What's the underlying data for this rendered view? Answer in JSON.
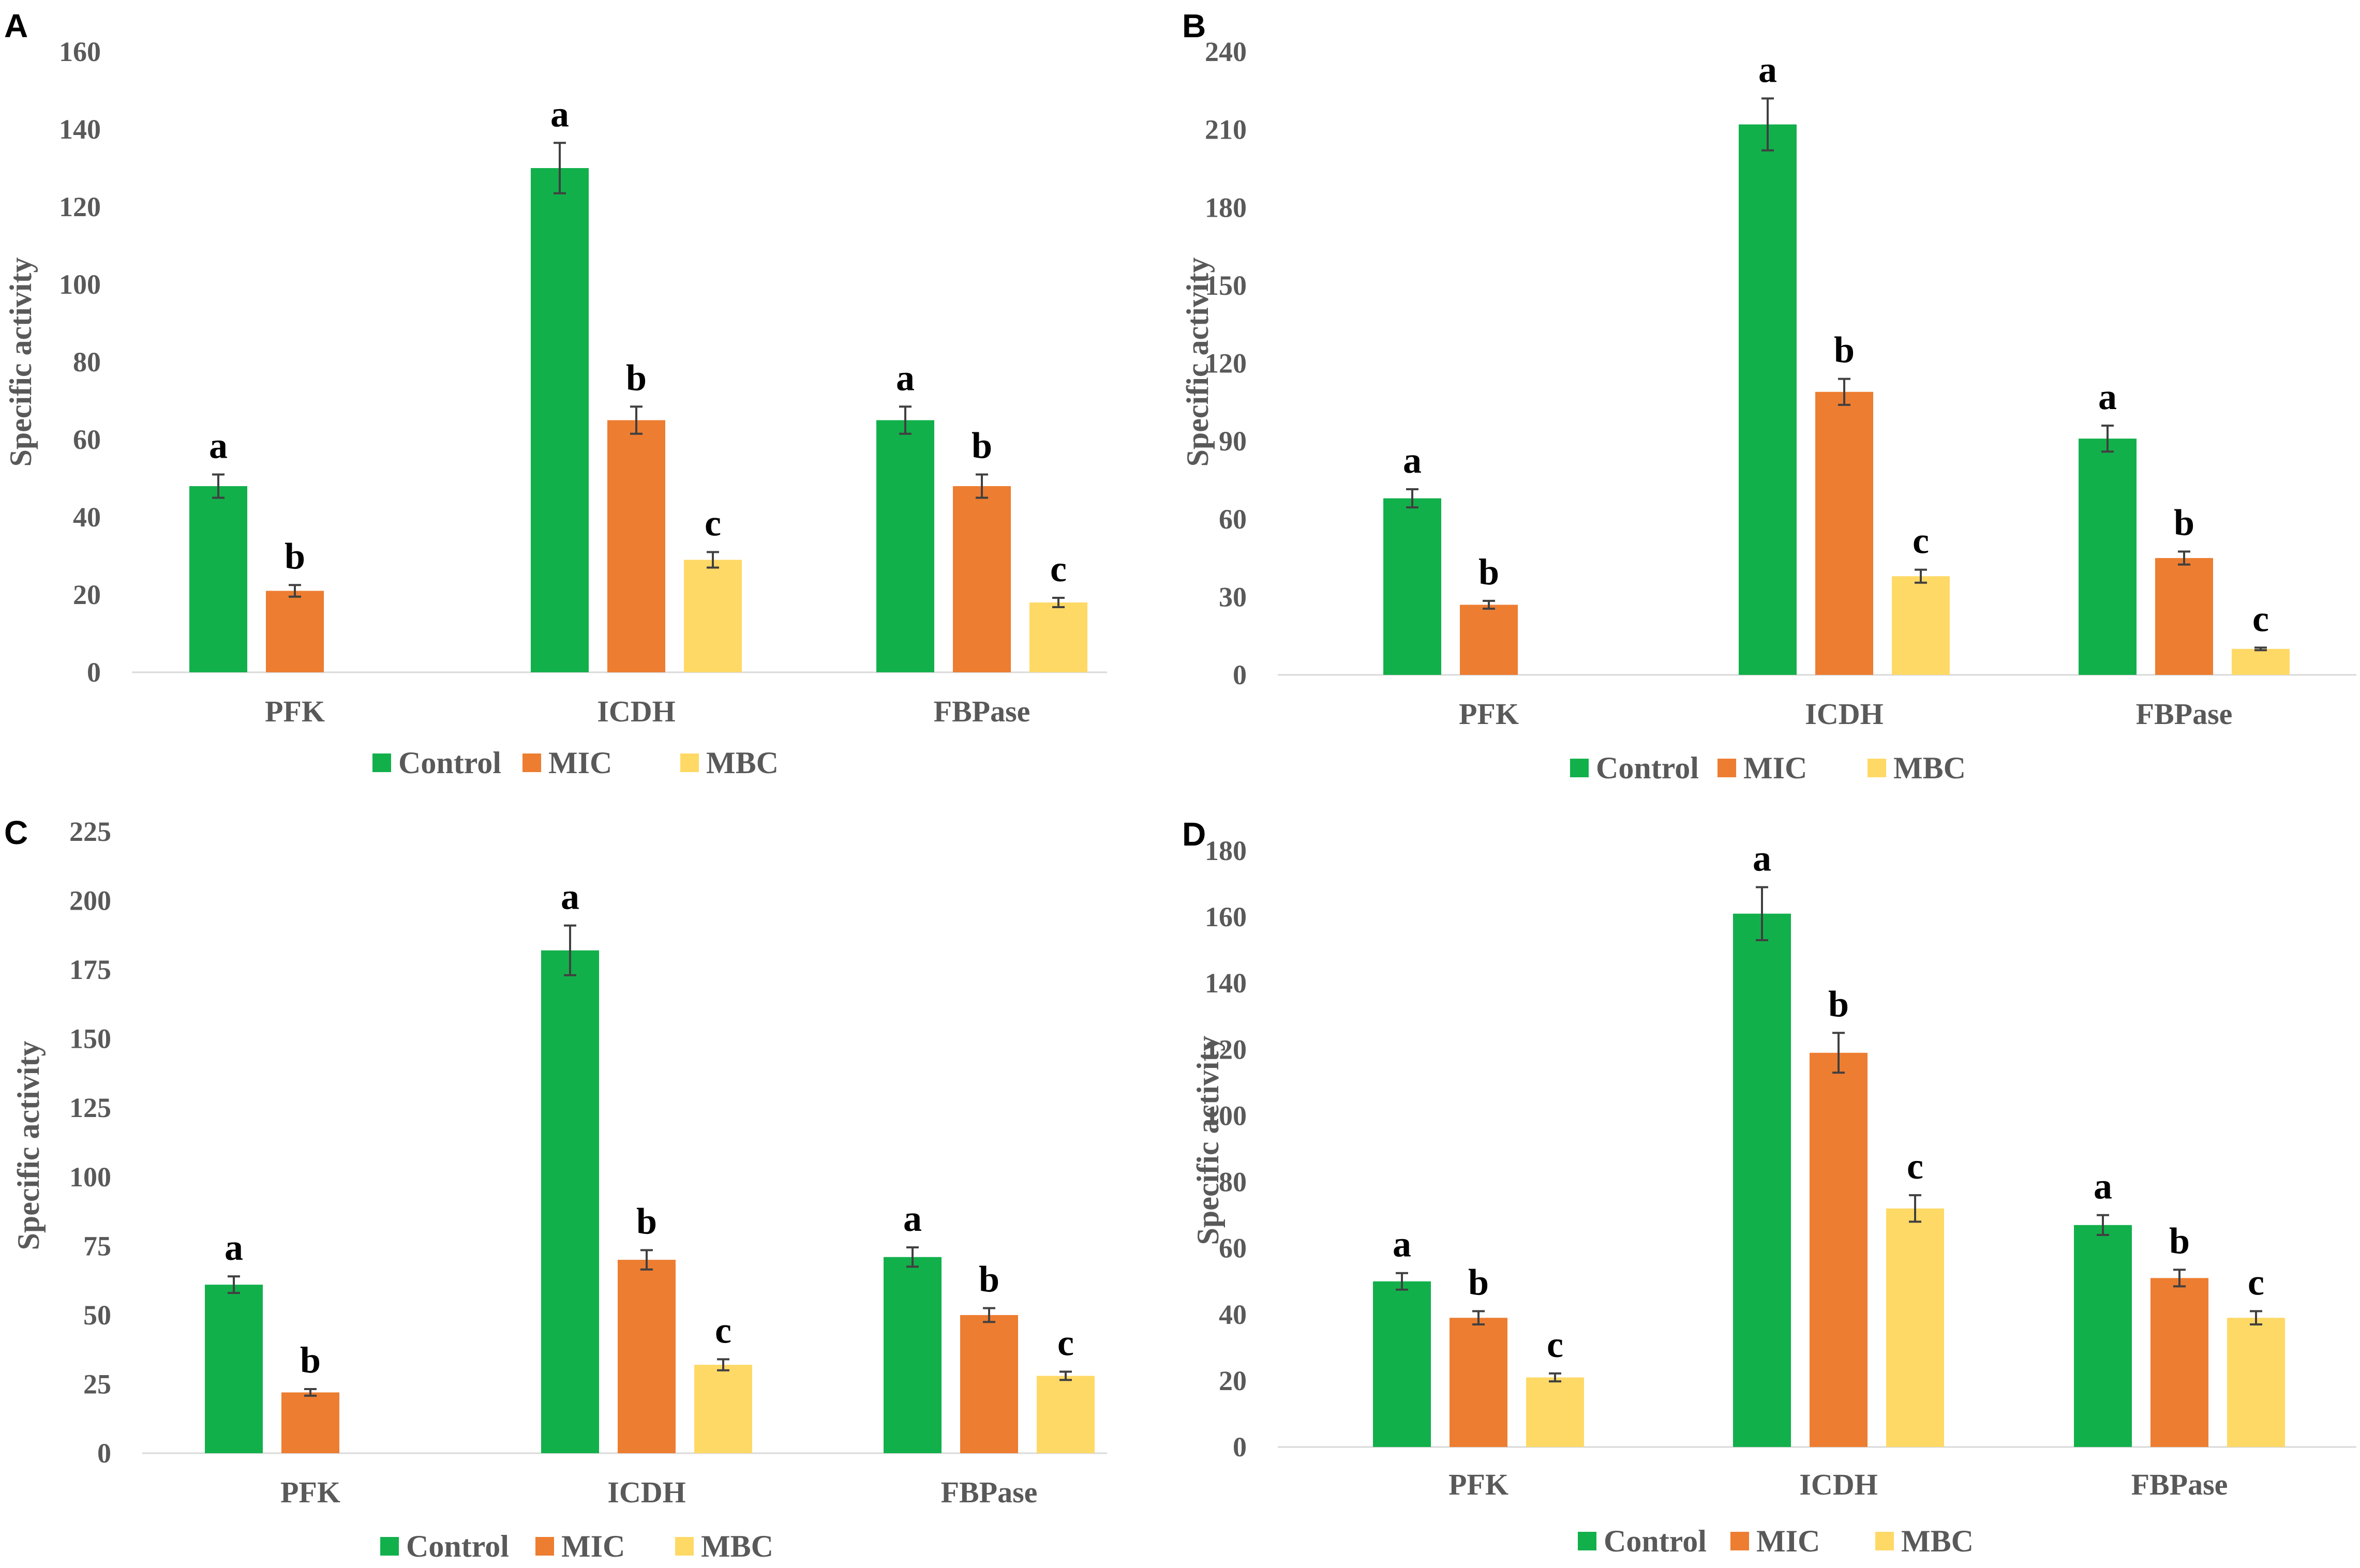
{
  "colors": {
    "Control": "#12b04b",
    "MIC": "#ed7d31",
    "MBC": "#ffd966"
  },
  "chart_data": [
    {
      "type": "bar",
      "panel": "A",
      "ylabel": "Specific activity",
      "categories": [
        "PFK",
        "ICDH",
        "FBPase"
      ],
      "ylim": [
        0,
        160
      ],
      "yticks": [
        0,
        20,
        40,
        60,
        80,
        100,
        120,
        140,
        160
      ],
      "series": [
        {
          "name": "Control",
          "values": [
            48,
            130,
            65
          ],
          "errors": [
            3,
            6.5,
            3.5
          ],
          "sig": [
            "a",
            "a",
            "a"
          ]
        },
        {
          "name": "MIC",
          "values": [
            21,
            65,
            48
          ],
          "errors": [
            1.5,
            3.5,
            3
          ],
          "sig": [
            "b",
            "b",
            "b"
          ]
        },
        {
          "name": "MBC",
          "values": [
            null,
            29,
            18
          ],
          "errors": [
            null,
            2,
            1.2
          ],
          "sig": [
            "",
            "c",
            "c"
          ]
        }
      ]
    },
    {
      "type": "bar",
      "panel": "B",
      "ylabel": "Specific activity",
      "categories": [
        "PFK",
        "ICDH",
        "FBPase"
      ],
      "ylim": [
        0,
        240
      ],
      "yticks": [
        0,
        30,
        60,
        90,
        120,
        150,
        180,
        210,
        240
      ],
      "series": [
        {
          "name": "Control",
          "values": [
            68,
            212,
            91
          ],
          "errors": [
            3.5,
            10,
            5
          ],
          "sig": [
            "a",
            "a",
            "a"
          ]
        },
        {
          "name": "MIC",
          "values": [
            27,
            109,
            45
          ],
          "errors": [
            1.5,
            5,
            2.5
          ],
          "sig": [
            "b",
            "b",
            "b"
          ]
        },
        {
          "name": "MBC",
          "values": [
            null,
            38,
            10
          ],
          "errors": [
            null,
            2.5,
            0.5
          ],
          "sig": [
            "",
            "c",
            "c"
          ]
        }
      ]
    },
    {
      "type": "bar",
      "panel": "C",
      "ylabel": "Specific activity",
      "categories": [
        "PFK",
        "ICDH",
        "FBPase"
      ],
      "ylim": [
        0,
        225
      ],
      "yticks": [
        0,
        25,
        50,
        75,
        100,
        125,
        150,
        175,
        200,
        225
      ],
      "series": [
        {
          "name": "Control",
          "values": [
            61,
            182,
            71
          ],
          "errors": [
            3,
            9,
            3.5
          ],
          "sig": [
            "a",
            "a",
            "a"
          ]
        },
        {
          "name": "MIC",
          "values": [
            22,
            70,
            50
          ],
          "errors": [
            1.2,
            3.5,
            2.5
          ],
          "sig": [
            "b",
            "b",
            "b"
          ]
        },
        {
          "name": "MBC",
          "values": [
            null,
            32,
            28
          ],
          "errors": [
            null,
            2,
            1.5
          ],
          "sig": [
            "",
            "c",
            "c"
          ]
        }
      ]
    },
    {
      "type": "bar",
      "panel": "D",
      "ylabel": "Specific activity",
      "categories": [
        "PFK",
        "ICDH",
        "FBPase"
      ],
      "ylim": [
        0,
        180
      ],
      "yticks": [
        0,
        20,
        40,
        60,
        80,
        100,
        120,
        140,
        160,
        180
      ],
      "series": [
        {
          "name": "Control",
          "values": [
            50,
            161,
            67
          ],
          "errors": [
            2.5,
            8,
            3
          ],
          "sig": [
            "a",
            "a",
            "a"
          ]
        },
        {
          "name": "MIC",
          "values": [
            39,
            119,
            51
          ],
          "errors": [
            2,
            6,
            2.5
          ],
          "sig": [
            "b",
            "b",
            "b"
          ]
        },
        {
          "name": "MBC",
          "values": [
            21,
            72,
            39
          ],
          "errors": [
            1.2,
            4,
            2
          ],
          "sig": [
            "c",
            "c",
            "c"
          ]
        }
      ]
    }
  ]
}
